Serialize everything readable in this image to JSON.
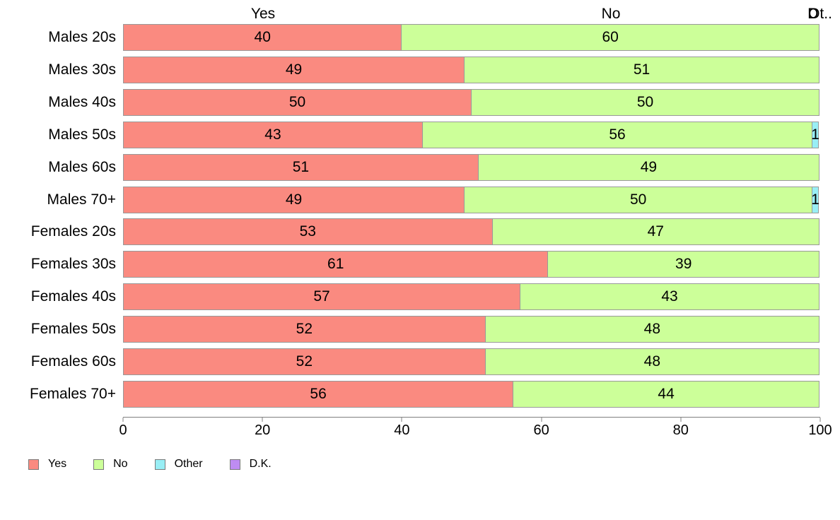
{
  "chart_data": {
    "type": "bar",
    "orientation": "horizontal",
    "stacked": true,
    "categories": [
      "Males 20s",
      "Males 30s",
      "Males 40s",
      "Males 50s",
      "Males 60s",
      "Males 70+",
      "Females 20s",
      "Females 30s",
      "Females 40s",
      "Females 50s",
      "Females 60s",
      "Females 70+"
    ],
    "series": [
      {
        "name": "Yes",
        "color": "#FA8A80",
        "values": [
          40,
          49,
          50,
          43,
          51,
          49,
          53,
          61,
          57,
          52,
          52,
          56
        ]
      },
      {
        "name": "No",
        "color": "#CCFF99",
        "values": [
          60,
          51,
          50,
          56,
          49,
          50,
          47,
          39,
          43,
          48,
          48,
          44
        ]
      },
      {
        "name": "Other",
        "color": "#99EEF5",
        "values": [
          0,
          0,
          0,
          1,
          0,
          1,
          0,
          0,
          0,
          0,
          0,
          0
        ]
      },
      {
        "name": "D.K.",
        "color": "#BE8CF2",
        "values": [
          0,
          0,
          0,
          0,
          0,
          0,
          0,
          0,
          0,
          0,
          0,
          0
        ]
      }
    ],
    "xlim": [
      0,
      100
    ],
    "x_ticks": [
      0,
      20,
      40,
      60,
      80,
      100
    ],
    "grid": false,
    "legend_position": "bottom",
    "column_headers": {
      "yes": "Yes",
      "no": "No",
      "other_truncated": "Ot..",
      "dk_overlap": "D"
    }
  }
}
